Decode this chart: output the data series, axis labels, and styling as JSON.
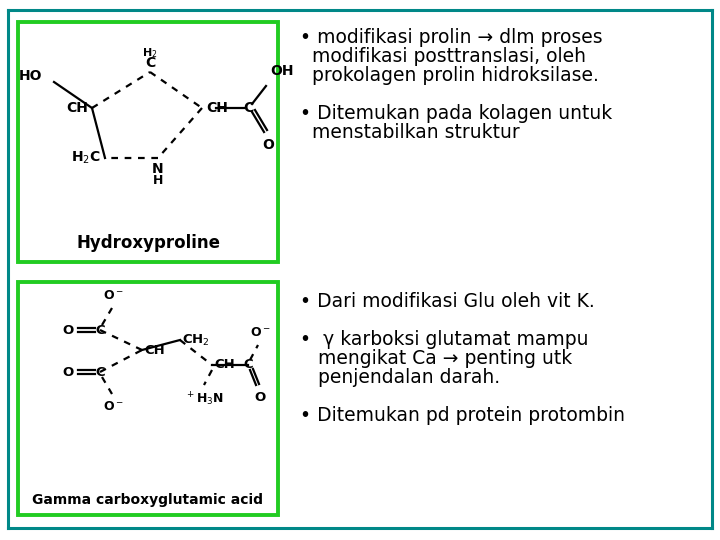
{
  "background_color": "#ffffff",
  "border_color": "#22cc22",
  "text_color": "#000000",
  "teal_color": "#008888",
  "top_section": {
    "b1l1": "• modifikasi prolin → dlm proses",
    "b1l2": "  modifikasi posttranslasi, oleh",
    "b1l3": "  prokolagen prolin hidroksilase.",
    "b2l1": "• Ditemukan pada kolagen untuk",
    "b2l2": "  menstabilkan struktur"
  },
  "bottom_section": {
    "b1": "• Dari modifikasi Glu oleh vit K.",
    "b2l1": "•  γ karboksi glutamat mampu",
    "b2l2": "   mengikat Ca → penting utk",
    "b2l3": "   penjendalan darah.",
    "b3": "• Ditemukan pd protein protombin"
  },
  "hydroxyproline_label": "Hydroxyproline",
  "gamma_label": "Gamma carboxyglutamic acid",
  "fs": 13.5
}
